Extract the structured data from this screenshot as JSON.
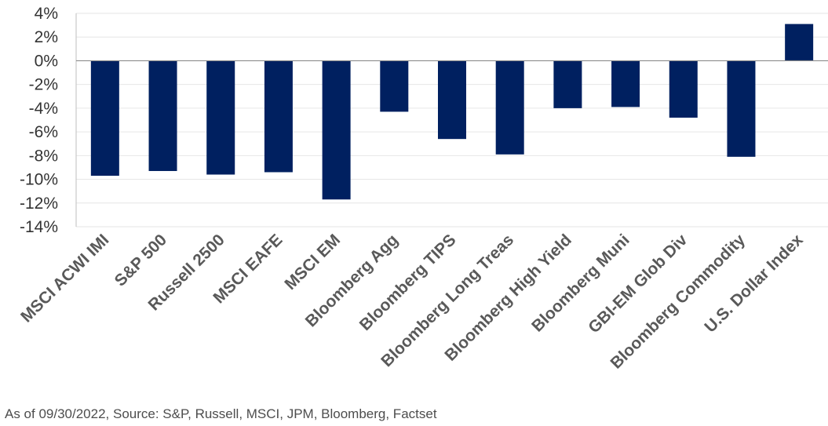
{
  "chart_data": {
    "type": "bar",
    "categories": [
      "MSCI ACWI IMI",
      "S&P 500",
      "Russell 2500",
      "MSCI EAFE",
      "MSCI EM",
      "Bloomberg Agg",
      "Bloomberg TIPS",
      "Bloomberg Long Treas",
      "Bloomberg High Yield",
      "Bloomberg Muni",
      "GBI-EM Glob Div",
      "Bloomberg Commodity",
      "U.S. Dollar Index"
    ],
    "values": [
      -9.7,
      -9.3,
      -9.6,
      -9.4,
      -11.7,
      -4.3,
      -6.6,
      -7.9,
      -4.0,
      -3.9,
      -4.8,
      -8.1,
      3.1
    ],
    "ylim": [
      -14,
      4
    ],
    "yticks": [
      4,
      2,
      0,
      -2,
      -4,
      -6,
      -8,
      -10,
      -12,
      -14
    ],
    "ytick_labels": [
      "4%",
      "2%",
      "0%",
      "-2%",
      "-4%",
      "-6%",
      "-8%",
      "-10%",
      "-12%",
      "-14%"
    ],
    "grid": true,
    "bar_color": "#002060"
  },
  "footnote": "As of 09/30/2022, Source: S&P, Russell, MSCI, JPM, Bloomberg, Factset"
}
